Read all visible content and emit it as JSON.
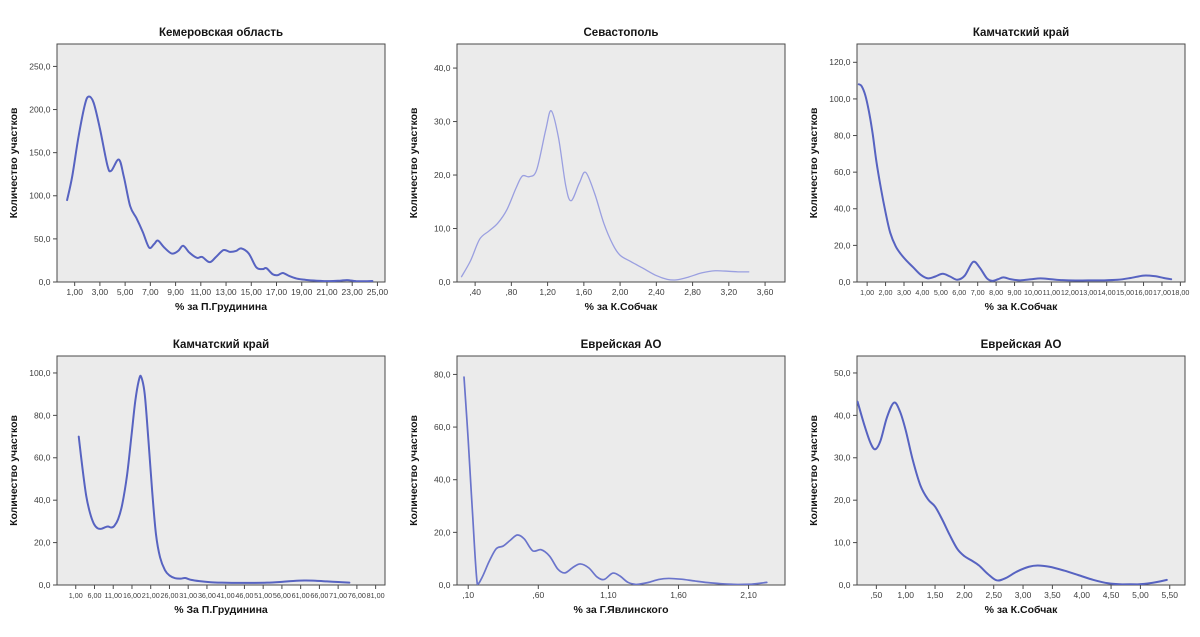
{
  "figure": {
    "background": "#ffffff",
    "plot_background": "#ebebeb",
    "frame_color": "#4a4a4a",
    "title_color": "#141414",
    "tick_text_color": "#3d3d3d",
    "ylabel_shared": "Количество участков"
  },
  "chart_data": [
    {
      "type": "line",
      "title": "Кемеровская область",
      "xlabel": "% за П.Грудинина",
      "ylabel": "Количество участков",
      "legend": "none",
      "grid": "off",
      "line_color": "#5763c1",
      "line_width": 2.0,
      "xlim": [
        -0.4,
        25.6
      ],
      "ylim": [
        0,
        276
      ],
      "xticks": [
        1,
        3,
        5,
        7,
        9,
        11,
        13,
        15,
        17,
        19,
        21,
        23,
        25
      ],
      "xtick_labels": [
        "1,00",
        "3,00",
        "5,00",
        "7,00",
        "9,00",
        "11,00",
        "13,00",
        "15,00",
        "17,00",
        "19,00",
        "21,00",
        "23,00",
        "25,00"
      ],
      "yticks": [
        0,
        50,
        100,
        150,
        200,
        250
      ],
      "ytick_labels": [
        "0,0",
        "50,0",
        "100,0",
        "150,0",
        "200,0",
        "250,0"
      ],
      "points": [
        [
          0.4,
          95
        ],
        [
          0.8,
          122
        ],
        [
          1.3,
          168
        ],
        [
          1.8,
          205
        ],
        [
          2.1,
          215
        ],
        [
          2.5,
          208
        ],
        [
          3.0,
          178
        ],
        [
          3.6,
          135
        ],
        [
          3.9,
          129
        ],
        [
          4.5,
          142
        ],
        [
          4.9,
          122
        ],
        [
          5.4,
          88
        ],
        [
          5.9,
          74
        ],
        [
          6.4,
          58
        ],
        [
          6.9,
          40
        ],
        [
          7.3,
          44
        ],
        [
          7.6,
          48
        ],
        [
          8.1,
          40
        ],
        [
          8.7,
          33
        ],
        [
          9.2,
          36
        ],
        [
          9.6,
          42
        ],
        [
          10.1,
          34
        ],
        [
          10.7,
          28
        ],
        [
          11.1,
          29
        ],
        [
          11.7,
          23
        ],
        [
          12.2,
          29
        ],
        [
          12.8,
          37
        ],
        [
          13.3,
          35
        ],
        [
          13.8,
          36
        ],
        [
          14.2,
          39
        ],
        [
          14.8,
          33
        ],
        [
          15.4,
          17
        ],
        [
          15.9,
          15
        ],
        [
          16.2,
          16
        ],
        [
          16.7,
          9
        ],
        [
          17.1,
          8
        ],
        [
          17.5,
          10.5
        ],
        [
          18.0,
          7
        ],
        [
          18.6,
          4
        ],
        [
          19.3,
          2.5
        ],
        [
          20.2,
          1.5
        ],
        [
          21.2,
          1
        ],
        [
          22.0,
          1.5
        ],
        [
          22.6,
          2.2
        ],
        [
          23.3,
          1
        ],
        [
          24.0,
          0.8
        ],
        [
          24.6,
          1.2
        ]
      ]
    },
    {
      "type": "line",
      "title": "Севастополь",
      "xlabel": "% за К.Собчак",
      "ylabel": "Количество участков",
      "legend": "none",
      "grid": "off",
      "line_color": "#9a9fe0",
      "line_width": 1.3,
      "xlim": [
        0.2,
        3.82
      ],
      "ylim": [
        0,
        44.5
      ],
      "xticks": [
        0.4,
        0.8,
        1.2,
        1.6,
        2.0,
        2.4,
        2.8,
        3.2,
        3.6
      ],
      "xtick_labels": [
        ",40",
        ",80",
        "1,20",
        "1,60",
        "2,00",
        "2,40",
        "2,80",
        "3,20",
        "3,60"
      ],
      "yticks": [
        0,
        10,
        20,
        30,
        40
      ],
      "ytick_labels": [
        "0,0",
        "10,0",
        "20,0",
        "30,0",
        "40,0"
      ],
      "points": [
        [
          0.25,
          1
        ],
        [
          0.35,
          4
        ],
        [
          0.45,
          8
        ],
        [
          0.55,
          9.5
        ],
        [
          0.65,
          11
        ],
        [
          0.75,
          13.5
        ],
        [
          0.85,
          17.5
        ],
        [
          0.92,
          19.8
        ],
        [
          1.0,
          19.7
        ],
        [
          1.08,
          21
        ],
        [
          1.18,
          28.5
        ],
        [
          1.24,
          32
        ],
        [
          1.32,
          27
        ],
        [
          1.4,
          18
        ],
        [
          1.46,
          15.2
        ],
        [
          1.55,
          18.5
        ],
        [
          1.62,
          20.5
        ],
        [
          1.72,
          16.5
        ],
        [
          1.82,
          11
        ],
        [
          1.92,
          7
        ],
        [
          2.0,
          5
        ],
        [
          2.12,
          3.8
        ],
        [
          2.25,
          2.6
        ],
        [
          2.4,
          1.2
        ],
        [
          2.52,
          0.5
        ],
        [
          2.62,
          0.4
        ],
        [
          2.75,
          0.9
        ],
        [
          2.9,
          1.7
        ],
        [
          3.05,
          2.1
        ],
        [
          3.2,
          2.0
        ],
        [
          3.3,
          1.9
        ],
        [
          3.42,
          1.9
        ]
      ]
    },
    {
      "type": "line",
      "title": "Камчатский край",
      "xlabel": "% за К.Собчак",
      "ylabel": "Количество участков",
      "legend": "none",
      "grid": "off",
      "line_color": "#5763c1",
      "line_width": 2.0,
      "xlim": [
        0.45,
        18.25
      ],
      "ylim": [
        0,
        130
      ],
      "xticks": [
        1,
        2,
        3,
        4,
        5,
        6,
        7,
        8,
        9,
        10,
        11,
        12,
        13,
        14,
        15,
        16,
        17,
        18
      ],
      "xtick_labels": [
        "1,00",
        "2,00",
        "3,00",
        "4,00",
        "5,00",
        "6,00",
        "7,00",
        "8,00",
        "9,00",
        "10,00",
        "11,00",
        "12,00",
        "13,00",
        "14,00",
        "15,00",
        "16,00",
        "17,00",
        "18,00"
      ],
      "yticks": [
        0,
        20,
        40,
        60,
        80,
        100,
        120
      ],
      "ytick_labels": [
        "0,0",
        "20,0",
        "40,0",
        "60,0",
        "80,0",
        "100,0",
        "120,0"
      ],
      "points": [
        [
          0.55,
          108
        ],
        [
          0.7,
          107
        ],
        [
          0.9,
          102
        ],
        [
          1.1,
          93
        ],
        [
          1.3,
          81
        ],
        [
          1.5,
          66
        ],
        [
          1.75,
          51
        ],
        [
          2.0,
          38
        ],
        [
          2.25,
          27
        ],
        [
          2.55,
          19.5
        ],
        [
          2.85,
          15
        ],
        [
          3.15,
          11.5
        ],
        [
          3.5,
          8
        ],
        [
          3.9,
          4
        ],
        [
          4.3,
          2
        ],
        [
          4.7,
          3
        ],
        [
          5.1,
          4.5
        ],
        [
          5.5,
          3
        ],
        [
          5.9,
          1.2
        ],
        [
          6.3,
          3.5
        ],
        [
          6.75,
          11
        ],
        [
          7.1,
          8
        ],
        [
          7.5,
          2
        ],
        [
          7.8,
          0.6
        ],
        [
          8.1,
          1.5
        ],
        [
          8.4,
          2.5
        ],
        [
          8.8,
          1.5
        ],
        [
          9.3,
          0.9
        ],
        [
          9.9,
          1.5
        ],
        [
          10.4,
          2
        ],
        [
          11.0,
          1.5
        ],
        [
          11.6,
          1
        ],
        [
          12.3,
          0.8
        ],
        [
          13.0,
          0.9
        ],
        [
          13.8,
          0.9
        ],
        [
          14.6,
          1.2
        ],
        [
          15.3,
          2.2
        ],
        [
          16.0,
          3.5
        ],
        [
          16.6,
          3.2
        ],
        [
          17.1,
          2.2
        ],
        [
          17.5,
          1.5
        ]
      ]
    },
    {
      "type": "line",
      "title": "Камчатский край",
      "xlabel": "% За П.Грудинина",
      "ylabel": "Количество участков",
      "legend": "none",
      "grid": "off",
      "line_color": "#5763c1",
      "line_width": 2.0,
      "xlim": [
        -4,
        83.5
      ],
      "ylim": [
        0,
        108
      ],
      "xticks": [
        1,
        6,
        11,
        16,
        21,
        26,
        31,
        36,
        41,
        46,
        51,
        56,
        61,
        66,
        71,
        76,
        81
      ],
      "xtick_labels": [
        "1,00",
        "6,00",
        "11,00",
        "16,00",
        "21,00",
        "26,00",
        "31,00",
        "36,00",
        "41,00",
        "46,00",
        "51,00",
        "56,00",
        "61,00",
        "66,00",
        "71,00",
        "76,00",
        "81,00"
      ],
      "yticks": [
        0,
        20,
        40,
        60,
        80,
        100
      ],
      "ytick_labels": [
        "0,0",
        "20,0",
        "40,0",
        "60,0",
        "80,0",
        "100,0"
      ],
      "points": [
        [
          1.8,
          70
        ],
        [
          2.8,
          55
        ],
        [
          3.8,
          42
        ],
        [
          4.8,
          34
        ],
        [
          5.8,
          29
        ],
        [
          6.8,
          26.8
        ],
        [
          7.8,
          26.5
        ],
        [
          8.8,
          27.2
        ],
        [
          9.6,
          27.6
        ],
        [
          10.5,
          27.1
        ],
        [
          11.3,
          27.9
        ],
        [
          12.3,
          31
        ],
        [
          13.4,
          38
        ],
        [
          14.7,
          52
        ],
        [
          15.9,
          71
        ],
        [
          16.9,
          87
        ],
        [
          17.9,
          97
        ],
        [
          18.5,
          98
        ],
        [
          19.4,
          90
        ],
        [
          20.4,
          68
        ],
        [
          21.4,
          44
        ],
        [
          22.4,
          24
        ],
        [
          23.5,
          13
        ],
        [
          24.8,
          7
        ],
        [
          26.0,
          4.5
        ],
        [
          27.5,
          3.2
        ],
        [
          29.0,
          3.0
        ],
        [
          30.2,
          3.3
        ],
        [
          31.8,
          2.4
        ],
        [
          34.0,
          1.8
        ],
        [
          37.0,
          1.3
        ],
        [
          40.0,
          1.1
        ],
        [
          44.0,
          1.0
        ],
        [
          48.0,
          1.0
        ],
        [
          52.0,
          1.1
        ],
        [
          56.0,
          1.5
        ],
        [
          59.0,
          1.9
        ],
        [
          62.0,
          2.1
        ],
        [
          65.0,
          2.0
        ],
        [
          68.0,
          1.7
        ],
        [
          71.0,
          1.4
        ],
        [
          74.0,
          1.1
        ]
      ]
    },
    {
      "type": "line",
      "title": "Еврейская АО",
      "xlabel": "% за Г.Явлинского",
      "ylabel": "Количество участков",
      "legend": "none",
      "grid": "off",
      "line_color": "#6a74cb",
      "line_width": 1.7,
      "xlim": [
        0.02,
        2.36
      ],
      "ylim": [
        0,
        87
      ],
      "xticks": [
        0.1,
        0.6,
        1.1,
        1.6,
        2.1
      ],
      "xtick_labels": [
        ",10",
        ",60",
        "1,10",
        "1,60",
        "2,10"
      ],
      "yticks": [
        0,
        20,
        40,
        60,
        80
      ],
      "ytick_labels": [
        "0,0",
        "20,0",
        "40,0",
        "60,0",
        "80,0"
      ],
      "points": [
        [
          0.07,
          79
        ],
        [
          0.1,
          55
        ],
        [
          0.13,
          28
        ],
        [
          0.165,
          0.3
        ],
        [
          0.2,
          3
        ],
        [
          0.25,
          9
        ],
        [
          0.3,
          13.8
        ],
        [
          0.35,
          14.8
        ],
        [
          0.4,
          17
        ],
        [
          0.45,
          19
        ],
        [
          0.5,
          17.5
        ],
        [
          0.56,
          13
        ],
        [
          0.62,
          13.4
        ],
        [
          0.68,
          11
        ],
        [
          0.74,
          6
        ],
        [
          0.79,
          4.6
        ],
        [
          0.85,
          6.8
        ],
        [
          0.9,
          8
        ],
        [
          0.96,
          6.5
        ],
        [
          1.02,
          3
        ],
        [
          1.07,
          2.1
        ],
        [
          1.13,
          4.5
        ],
        [
          1.18,
          3.5
        ],
        [
          1.24,
          1
        ],
        [
          1.3,
          0.2
        ],
        [
          1.38,
          0.9
        ],
        [
          1.46,
          2.1
        ],
        [
          1.53,
          2.5
        ],
        [
          1.62,
          2.2
        ],
        [
          1.72,
          1.5
        ],
        [
          1.83,
          0.8
        ],
        [
          1.93,
          0.4
        ],
        [
          2.03,
          0.2
        ],
        [
          2.12,
          0.3
        ],
        [
          2.23,
          1.0
        ]
      ]
    },
    {
      "type": "line",
      "title": "Еврейская АО",
      "xlabel": "% за К.Собчак",
      "ylabel": "Количество участков",
      "legend": "none",
      "grid": "off",
      "line_color": "#5763c1",
      "line_width": 2.0,
      "xlim": [
        0.17,
        5.76
      ],
      "ylim": [
        0,
        54
      ],
      "xticks": [
        0.5,
        1.0,
        1.5,
        2.0,
        2.5,
        3.0,
        3.5,
        4.0,
        4.5,
        5.0,
        5.5
      ],
      "xtick_labels": [
        ",50",
        "1,00",
        "1,50",
        "2,00",
        "2,50",
        "3,00",
        "3,50",
        "4,00",
        "4,50",
        "5,00",
        "5,50"
      ],
      "yticks": [
        0,
        10,
        20,
        30,
        40,
        50
      ],
      "ytick_labels": [
        "0,0",
        "10,0",
        "20,0",
        "30,0",
        "40,0",
        "50,0"
      ],
      "points": [
        [
          0.18,
          43.2
        ],
        [
          0.3,
          37.5
        ],
        [
          0.4,
          33.5
        ],
        [
          0.48,
          32
        ],
        [
          0.57,
          34
        ],
        [
          0.68,
          39.5
        ],
        [
          0.8,
          43
        ],
        [
          0.9,
          41
        ],
        [
          1.0,
          36.5
        ],
        [
          1.12,
          29.5
        ],
        [
          1.25,
          23.5
        ],
        [
          1.38,
          20.2
        ],
        [
          1.5,
          18.5
        ],
        [
          1.62,
          15.5
        ],
        [
          1.75,
          11.8
        ],
        [
          1.88,
          8.5
        ],
        [
          2.0,
          6.8
        ],
        [
          2.12,
          5.8
        ],
        [
          2.25,
          4.6
        ],
        [
          2.4,
          2.6
        ],
        [
          2.55,
          1.1
        ],
        [
          2.7,
          1.6
        ],
        [
          2.9,
          3.2
        ],
        [
          3.1,
          4.3
        ],
        [
          3.25,
          4.6
        ],
        [
          3.45,
          4.3
        ],
        [
          3.7,
          3.4
        ],
        [
          3.95,
          2.3
        ],
        [
          4.2,
          1.2
        ],
        [
          4.45,
          0.4
        ],
        [
          4.7,
          0.15
        ],
        [
          4.95,
          0.15
        ],
        [
          5.2,
          0.5
        ],
        [
          5.45,
          1.2
        ]
      ]
    }
  ]
}
